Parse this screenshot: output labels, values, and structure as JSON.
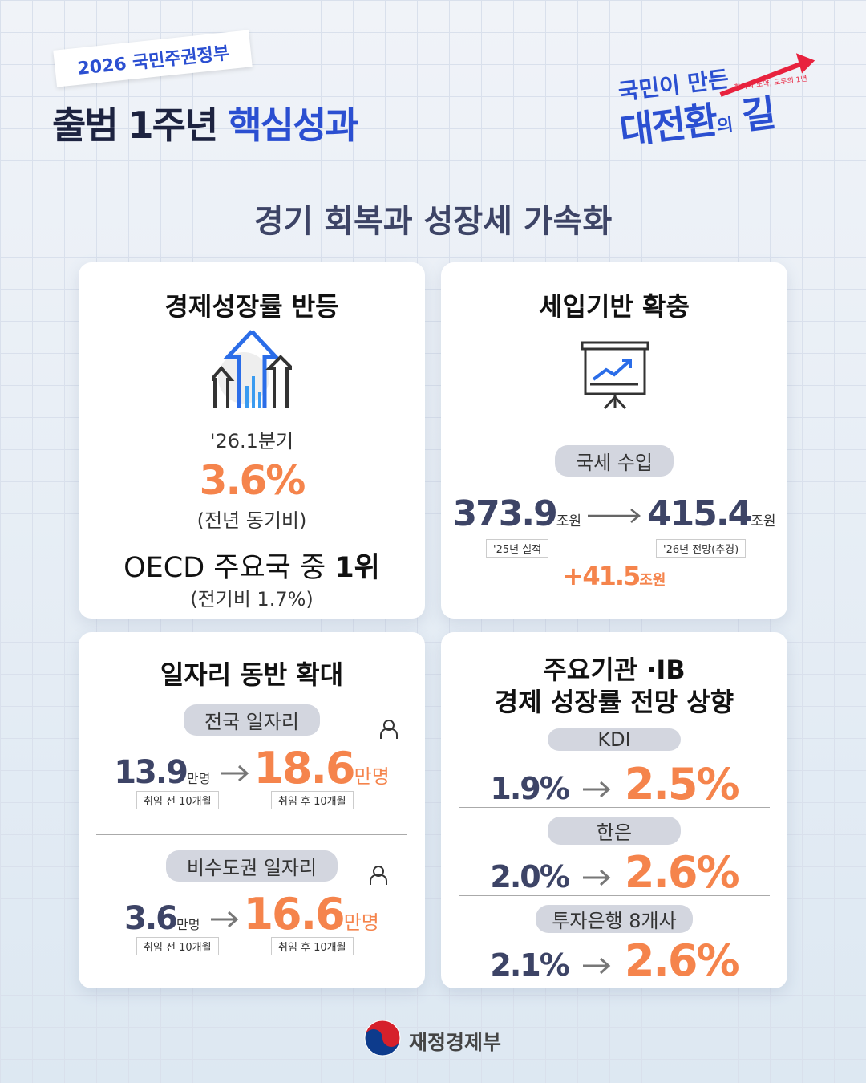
{
  "header": {
    "badge": "2026 국민주권정부",
    "title_main": "출범 1주년",
    "title_accent": "핵심성과",
    "logo": {
      "line1": "국민이 만든",
      "big": "대전환",
      "particle": "의",
      "last": "길",
      "tagline": "회복과 도약, 모두의 1년"
    }
  },
  "section_title": "경기 회복과 성장세 가속화",
  "cards": [
    {
      "title": "경제성장률 반등",
      "period": "'26.1분기",
      "value": "3.6%",
      "note": "(전년 동기비)",
      "rank_prefix": "OECD 주요국 중 ",
      "rank": "1위",
      "rank_note": "(전기비 1.7%)"
    },
    {
      "title": "세입기반 확충",
      "pill": "국세 수입",
      "from_value": "373.9",
      "from_unit": "조원",
      "from_label": "'25년 실적",
      "to_value": "415.4",
      "to_unit": "조원",
      "to_label": "'26년 전망(추경)",
      "diff_value": "+41.5",
      "diff_unit": "조원"
    },
    {
      "title": "일자리 동반 확대",
      "groups": [
        {
          "pill": "전국 일자리",
          "from_value": "13.9",
          "from_unit": "만명",
          "from_label": "취임 전 10개월",
          "to_value": "18.6",
          "to_unit": "만명",
          "to_label": "취임 후 10개월"
        },
        {
          "pill": "비수도권 일자리",
          "from_value": "3.6",
          "from_unit": "만명",
          "from_label": "취임 전 10개월",
          "to_value": "16.6",
          "to_unit": "만명",
          "to_label": "취임 후 10개월"
        }
      ]
    },
    {
      "title_lines": [
        "주요기관 ·IB",
        "경제 성장률 전망 상향"
      ],
      "rows": [
        {
          "name": "KDI",
          "from": "1.9%",
          "to": "2.5%"
        },
        {
          "name": "한은",
          "from": "2.0%",
          "to": "2.6%"
        },
        {
          "name": "투자은행 8개사",
          "from": "2.1%",
          "to": "2.6%"
        }
      ]
    }
  ],
  "footer": "재정경제부"
}
